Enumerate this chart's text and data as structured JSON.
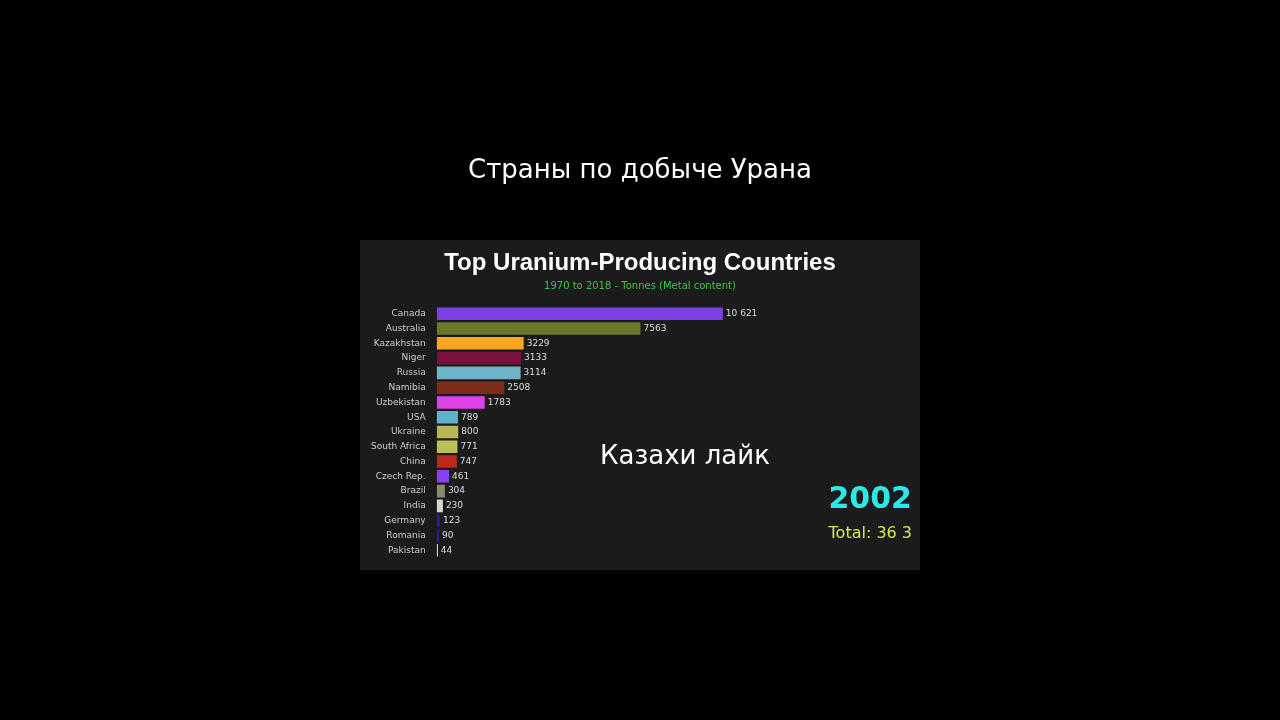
{
  "chart_data": {
    "type": "bar",
    "orientation": "horizontal",
    "tick_labels": "y",
    "title": "Top Uranium-Producing Countries",
    "subtitle": "1970 to 2018 - Tonnes (Metal content)",
    "categories": [
      "Canada",
      "Australia",
      "Kazakhstan",
      "Niger",
      "Russia",
      "Namibia",
      "Uzbekistan",
      "USA",
      "Ukraine",
      "South Africa",
      "China",
      "Czech Rep.",
      "Brazil",
      "India",
      "Germany",
      "Romania",
      "Pakistan"
    ],
    "values": [
      10621,
      7563,
      3229,
      3133,
      3114,
      2508,
      1783,
      789,
      800,
      771,
      747,
      461,
      304,
      230,
      123,
      90,
      44
    ],
    "value_labels": [
      "10 621",
      "7563",
      "3229",
      "3133",
      "3114",
      "2508",
      "1783",
      "789",
      "800",
      "771",
      "747",
      "461",
      "304",
      "230",
      "123",
      "90",
      "44"
    ],
    "colors": [
      "#7b3fe4",
      "#6b7a2a",
      "#f5a623",
      "#7a1240",
      "#6fb3c9",
      "#7a2e1a",
      "#e040e8",
      "#5fb3c9",
      "#b8b85a",
      "#b8c05a",
      "#c0281e",
      "#8a3ff0",
      "#8a8870",
      "#d8d8c8",
      "#2a1f8a",
      "#2a1f8a",
      "#e8f0f0"
    ],
    "annotations": [
      "Страны по добыче Урана",
      "Казахи лайк",
      "2002",
      "Total: 36 3"
    ],
    "legend": false
  }
}
